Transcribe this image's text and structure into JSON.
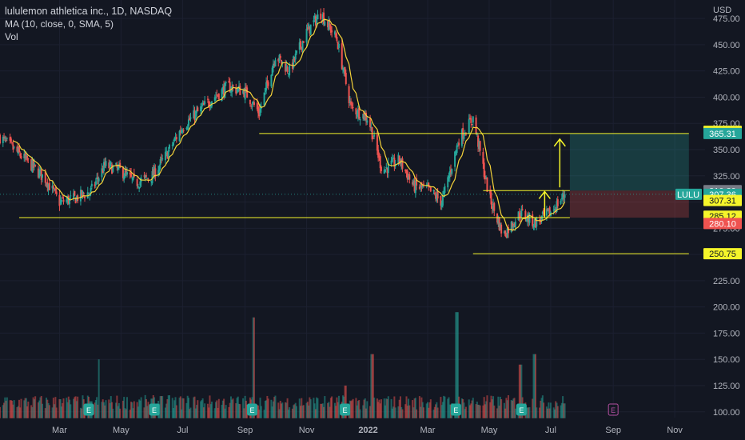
{
  "legend": {
    "title": "lululemon athletica inc., 1D, NASDAQ",
    "ma": "MA (10, close, 0, SMA, 5)",
    "vol": "Vol"
  },
  "colors": {
    "background": "#131722",
    "up": "#26a69a",
    "down": "#ef5350",
    "ma": "#f5d33a",
    "levels": "#f5f52a",
    "text": "#b2b5be",
    "grid": "#1c2030",
    "earnings": "#26a69a",
    "earnings_future": "#b34fa0"
  },
  "chart_data": {
    "type": "candlestick",
    "symbol": "LULU",
    "currency": "USD",
    "y_axis": {
      "label": "USD",
      "ticks": [
        100,
        125,
        150,
        175,
        200,
        225,
        250,
        275,
        300,
        325,
        350,
        375,
        400,
        425,
        450,
        475
      ],
      "ylim": [
        96,
        485
      ]
    },
    "x_axis": {
      "ticks": [
        {
          "label": "Mar",
          "date": "2021-03-01"
        },
        {
          "label": "May",
          "date": "2021-05-01"
        },
        {
          "label": "Jul",
          "date": "2021-07-01"
        },
        {
          "label": "Sep",
          "date": "2021-09-01"
        },
        {
          "label": "Nov",
          "date": "2021-11-01"
        },
        {
          "label": "2022",
          "date": "2022-01-01"
        },
        {
          "label": "Mar",
          "date": "2022-03-01"
        },
        {
          "label": "May",
          "date": "2022-05-01"
        },
        {
          "label": "Jul",
          "date": "2022-07-01"
        },
        {
          "label": "Sep",
          "date": "2022-09-01"
        },
        {
          "label": "Nov",
          "date": "2022-11-01"
        }
      ],
      "xlim": [
        "2021-01-01",
        "2022-12-01"
      ]
    },
    "close_series": [
      [
        "2021-01-01",
        362
      ],
      [
        "2021-01-15",
        350
      ],
      [
        "2021-02-01",
        335
      ],
      [
        "2021-02-15",
        322
      ],
      [
        "2021-03-01",
        300
      ],
      [
        "2021-03-15",
        303
      ],
      [
        "2021-04-01",
        310
      ],
      [
        "2021-04-15",
        335
      ],
      [
        "2021-05-01",
        330
      ],
      [
        "2021-05-15",
        318
      ],
      [
        "2021-06-01",
        325
      ],
      [
        "2021-06-15",
        345
      ],
      [
        "2021-07-01",
        372
      ],
      [
        "2021-08-01",
        400
      ],
      [
        "2021-08-15",
        410
      ],
      [
        "2021-09-01",
        405
      ],
      [
        "2021-09-15",
        385
      ],
      [
        "2021-10-01",
        440
      ],
      [
        "2021-10-15",
        425
      ],
      [
        "2021-11-01",
        462
      ],
      [
        "2021-11-15",
        480
      ],
      [
        "2021-12-01",
        455
      ],
      [
        "2021-12-15",
        390
      ],
      [
        "2022-01-01",
        380
      ],
      [
        "2022-01-15",
        330
      ],
      [
        "2022-02-01",
        340
      ],
      [
        "2022-02-15",
        315
      ],
      [
        "2022-03-01",
        312
      ],
      [
        "2022-03-15",
        300
      ],
      [
        "2022-04-01",
        360
      ],
      [
        "2022-04-15",
        380
      ],
      [
        "2022-05-01",
        305
      ],
      [
        "2022-05-15",
        268
      ],
      [
        "2022-06-01",
        290
      ],
      [
        "2022-06-15",
        280
      ],
      [
        "2022-07-01",
        290
      ],
      [
        "2022-07-15",
        307.36
      ]
    ],
    "volume_series": [
      [
        "2021-03-01",
        112
      ],
      [
        "2021-04-01",
        110
      ],
      [
        "2021-04-10",
        150
      ],
      [
        "2021-06-10",
        115
      ],
      [
        "2021-09-10",
        190
      ],
      [
        "2021-12-10",
        125
      ],
      [
        "2022-01-05",
        155
      ],
      [
        "2022-03-30",
        195
      ],
      [
        "2022-06-01",
        145
      ],
      [
        "2022-06-15",
        155
      ],
      [
        "2022-07-15",
        108
      ]
    ],
    "earnings_dates": [
      "2021-03-30",
      "2021-06-03",
      "2021-09-08",
      "2021-12-09",
      "2022-03-29",
      "2022-06-02"
    ],
    "earnings_future": [
      "2022-09-01"
    ],
    "levels": [
      {
        "price": 365.31,
        "from": "2021-09-15",
        "to": "2022-11-15"
      },
      {
        "price": 285.12,
        "from": "2021-01-20",
        "to": "2022-07-20"
      },
      {
        "price": 250.75,
        "from": "2022-04-15",
        "to": "2022-11-15"
      },
      {
        "price": 310.89,
        "from": "2022-04-25",
        "to": "2022-07-20"
      }
    ],
    "position": {
      "from": "2022-07-20",
      "to": "2022-11-15",
      "entry": 310.89,
      "target": 365.31,
      "stop": 285.12
    },
    "arrows": [
      {
        "date": "2022-07-10",
        "from": 314,
        "to": 360
      },
      {
        "date": "2022-06-25",
        "from": 285,
        "to": 310
      }
    ],
    "price_labels": [
      {
        "value": "367.46",
        "price": 367.46,
        "bg": "#f5f52a",
        "fg": "#131722"
      },
      {
        "value": "365.31",
        "price": 365.31,
        "bg": "#26a69a",
        "fg": "#ffffff"
      },
      {
        "value": "310.89",
        "price": 310.89,
        "bg": "#787b86",
        "fg": "#ffffff"
      },
      {
        "value": "307.36",
        "price": 307.36,
        "bg": "#26a69a",
        "fg": "#ffffff"
      },
      {
        "value": "307.31",
        "price": 301.5,
        "bg": "#f5f52a",
        "fg": "#131722"
      },
      {
        "value": "285.12",
        "price": 286.5,
        "bg": "#f5f52a",
        "fg": "#131722"
      },
      {
        "value": "280.10",
        "price": 279.5,
        "bg": "#ef5350",
        "fg": "#ffffff"
      },
      {
        "value": "250.75",
        "price": 250.75,
        "bg": "#f5f52a",
        "fg": "#131722"
      }
    ],
    "ticker_label": "LULU",
    "last_price": 307.36
  }
}
